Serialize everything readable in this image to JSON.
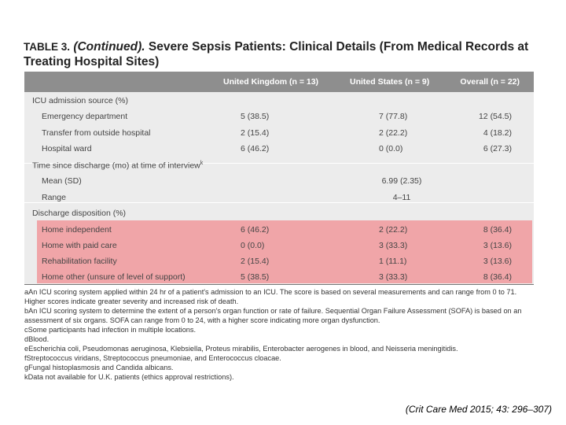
{
  "title": {
    "label": "TABLE 3.",
    "continued": "(Continued).",
    "text": "Severe Sepsis Patients: Clinical Details (From Medical Records at Treating Hospital Sites)"
  },
  "columns": {
    "uk": "United Kingdom (n = 13)",
    "us": "United States (n = 9)",
    "overall": "Overall (n = 22)"
  },
  "sections": {
    "icu": {
      "label": "ICU admission source (%)",
      "rows": [
        {
          "label": "Emergency department",
          "uk": "5 (38.5)",
          "us": "7 (77.8)",
          "overall": "12 (54.5)"
        },
        {
          "label": "Transfer from outside hospital",
          "uk": "2 (15.4)",
          "us": "2 (22.2)",
          "overall": "4 (18.2)"
        },
        {
          "label": "Hospital ward",
          "uk": "6 (46.2)",
          "us": "0 (0.0)",
          "overall": "6 (27.3)"
        }
      ]
    },
    "time": {
      "label": "Time since discharge (mo) at time of interview",
      "sup": "k",
      "rows": [
        {
          "label": "Mean (SD)",
          "value": "6.99 (2.35)"
        },
        {
          "label": "Range",
          "value": "4–11"
        }
      ]
    },
    "discharge": {
      "label": "Discharge disposition (%)",
      "rows": [
        {
          "label": "Home independent",
          "uk": "6 (46.2)",
          "us": "2 (22.2)",
          "overall": "8 (36.4)"
        },
        {
          "label": "Home with paid care",
          "uk": "0 (0.0)",
          "us": "3 (33.3)",
          "overall": "3 (13.6)"
        },
        {
          "label": "Rehabilitation facility",
          "uk": "2 (15.4)",
          "us": "1 (11.1)",
          "overall": "3 (13.6)"
        },
        {
          "label": "Home other (unsure of level of support)",
          "uk": "5 (38.5)",
          "us": "3 (33.3)",
          "overall": "8 (36.4)"
        }
      ]
    }
  },
  "footnotes": [
    "aAn ICU scoring system applied within 24 hr of a patient's admission to an ICU. The score is based on several measurements and can range from 0 to 71. Higher scores indicate greater severity and increased risk of death.",
    "bAn ICU scoring system to determine the extent of a person's organ function or rate of failure. Sequential Organ Failure Assessment (SOFA) is based on an assessment of six organs. SOFA can range from 0 to 24, with a higher score indicating more organ dysfunction.",
    "cSome participants had infection in multiple locations.",
    "dBlood.",
    "eEscherichia coli, Pseudomonas aeruginosa, Klebsiella, Proteus mirabilis, Enterobacter aerogenes in blood, and Neisseria meningitidis.",
    "fStreptococcus viridans, Streptococcus pneumoniae, and Enterococcus cloacae.",
    "gFungal histoplasmosis and Candida albicans.",
    "kData not available for U.K. patients (ethics approval restrictions)."
  ],
  "citation": "(Crit Care Med 2015; 43: 296–307)"
}
